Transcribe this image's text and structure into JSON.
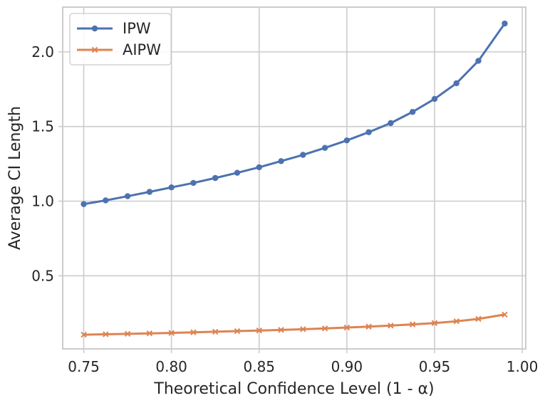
{
  "chart_data": {
    "type": "line",
    "title": "",
    "xlabel": "Theoretical Confidence Level (1 - α)",
    "ylabel": "Average CI Length",
    "xlim": [
      0.738,
      1.002
    ],
    "ylim": [
      0.01,
      2.3
    ],
    "xticks": [
      0.75,
      0.8,
      0.85,
      0.9,
      0.95,
      1.0
    ],
    "xtick_labels": [
      "0.75",
      "0.80",
      "0.85",
      "0.90",
      "0.95",
      "1.00"
    ],
    "yticks": [
      0.5,
      1.0,
      1.5,
      2.0
    ],
    "ytick_labels": [
      "0.5",
      "1.0",
      "1.5",
      "2.0"
    ],
    "grid": true,
    "legend_position": "top-left",
    "x": [
      0.75,
      0.7625,
      0.775,
      0.7875,
      0.8,
      0.8125,
      0.825,
      0.8375,
      0.85,
      0.8625,
      0.875,
      0.8875,
      0.9,
      0.9125,
      0.925,
      0.9375,
      0.95,
      0.9625,
      0.975,
      0.99
    ],
    "series": [
      {
        "name": "IPW",
        "color": "#4c72b0",
        "marker": "circle",
        "values": [
          0.98,
          1.005,
          1.033,
          1.062,
          1.092,
          1.122,
          1.155,
          1.19,
          1.227,
          1.268,
          1.31,
          1.357,
          1.407,
          1.462,
          1.523,
          1.598,
          1.685,
          1.79,
          1.94,
          2.19
        ]
      },
      {
        "name": "AIPW",
        "color": "#dd8452",
        "marker": "x",
        "values": [
          0.105,
          0.108,
          0.111,
          0.114,
          0.117,
          0.121,
          0.125,
          0.129,
          0.133,
          0.137,
          0.142,
          0.147,
          0.153,
          0.159,
          0.166,
          0.174,
          0.183,
          0.195,
          0.211,
          0.24
        ]
      }
    ]
  }
}
